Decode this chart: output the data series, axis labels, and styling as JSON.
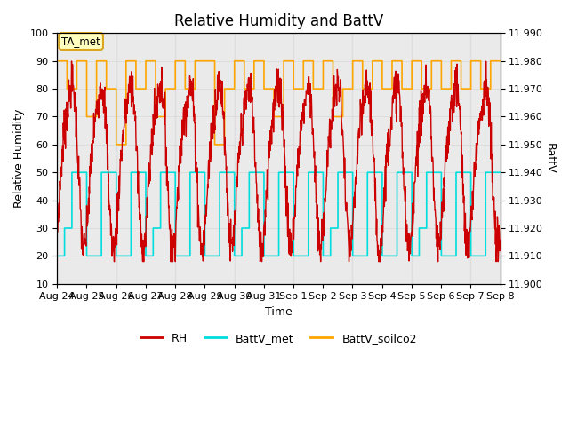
{
  "title": "Relative Humidity and BattV",
  "xlabel": "Time",
  "ylabel_left": "Relative Humidity",
  "ylabel_right": "BattV",
  "ylim_left": [
    10,
    100
  ],
  "ylim_right": [
    11.9,
    11.99
  ],
  "n_days": 15,
  "tick_labels": [
    "Aug 24",
    "Aug 25",
    "Aug 26",
    "Aug 27",
    "Aug 28",
    "Aug 29",
    "Aug 30",
    "Aug 31",
    "Sep 1",
    "Sep 2",
    "Sep 3",
    "Sep 4",
    "Sep 5",
    "Sep 6",
    "Sep 7",
    "Sep 8"
  ],
  "tick_positions": [
    0,
    1,
    2,
    3,
    4,
    5,
    6,
    7,
    8,
    9,
    10,
    11,
    12,
    13,
    14,
    15
  ],
  "annotation_text": "TA_met",
  "annotation_bg": "#FFFFC0",
  "annotation_edge": "#DAA520",
  "color_RH": "#CC0000",
  "color_BattV_met": "#00DDDD",
  "color_BattV_soilco2": "#FFA500",
  "bg_band_color": "#DCDCDC",
  "bg_band_alpha": 0.6,
  "title_fontsize": 12,
  "axis_label_fontsize": 9,
  "tick_fontsize": 8,
  "right_ticks": [
    11.9,
    11.91,
    11.92,
    11.93,
    11.94,
    11.95,
    11.96,
    11.97,
    11.98,
    11.99
  ]
}
